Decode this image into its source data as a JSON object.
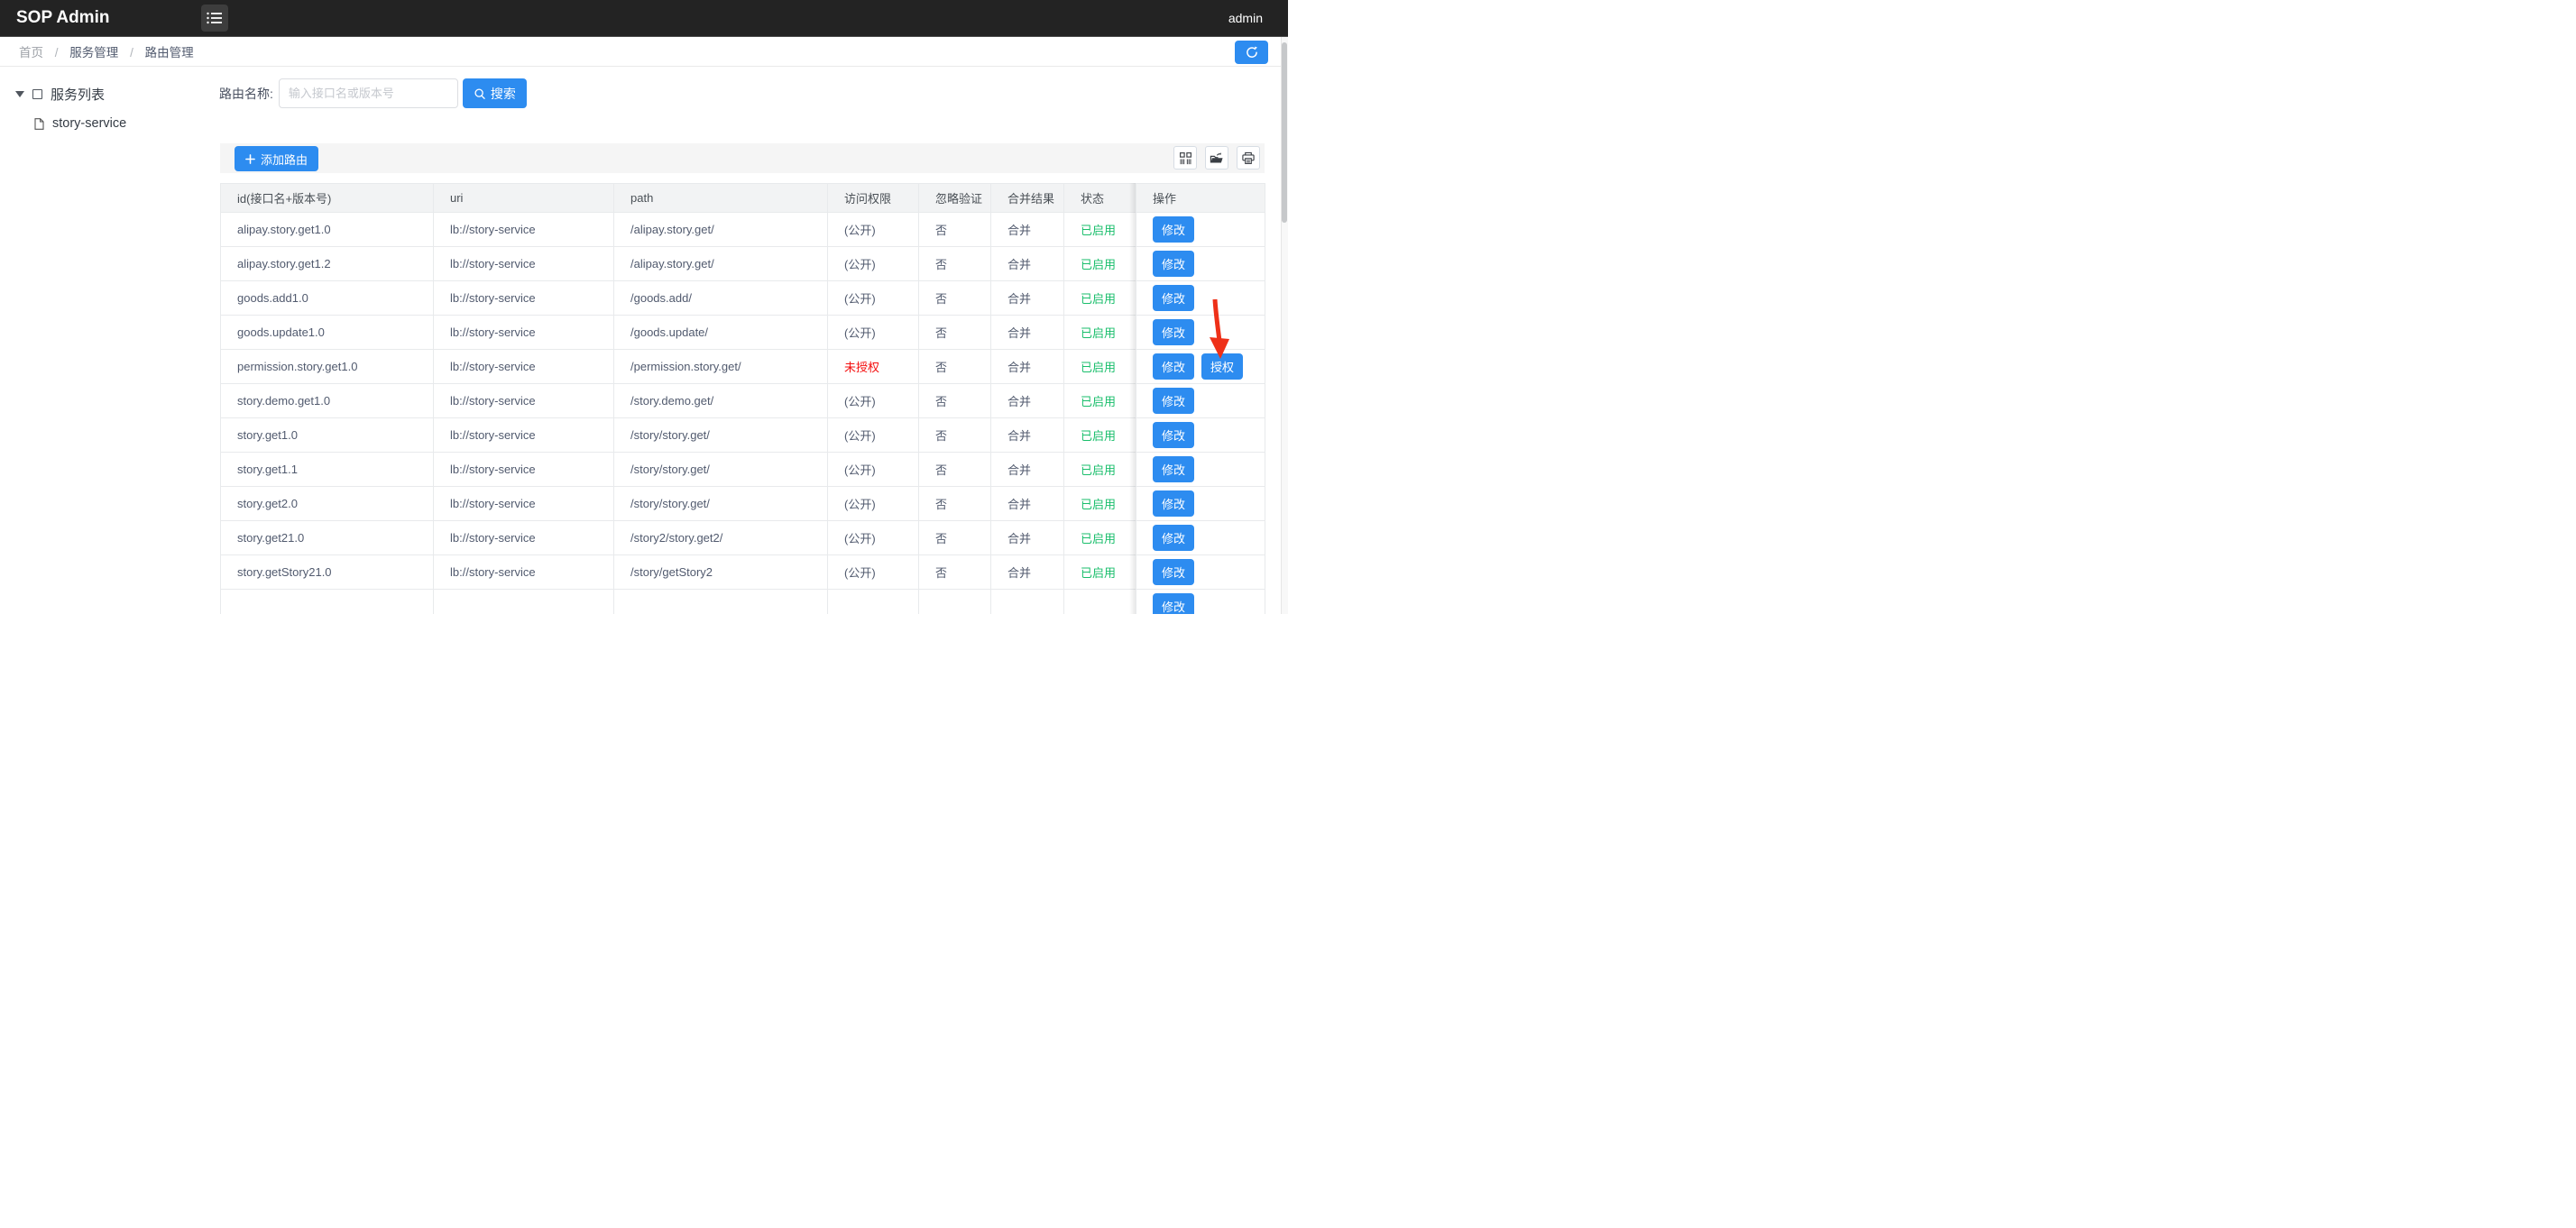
{
  "header": {
    "title": "SOP Admin",
    "user": "admin"
  },
  "breadcrumb": {
    "items": [
      "首页",
      "服务管理",
      "路由管理"
    ],
    "separator": "/"
  },
  "tree": {
    "root_label": "服务列表",
    "children": [
      "story-service"
    ]
  },
  "search": {
    "label": "路由名称:",
    "placeholder": "输入接口名或版本号",
    "value": "",
    "button_label": "搜索"
  },
  "toolbar": {
    "add_label": "添加路由"
  },
  "table": {
    "columns": [
      "id(接口名+版本号)",
      "uri",
      "path",
      "访问权限",
      "忽略验证",
      "合并结果",
      "状态",
      "操作"
    ],
    "rows": [
      {
        "id": "alipay.story.get1.0",
        "uri": "lb://story-service",
        "path": "/alipay.story.get/",
        "permission": "(公开)",
        "unauthorized": false,
        "ignore_auth": "否",
        "merge_result": "合并",
        "status": "已启用",
        "actions": [
          "修改"
        ]
      },
      {
        "id": "alipay.story.get1.2",
        "uri": "lb://story-service",
        "path": "/alipay.story.get/",
        "permission": "(公开)",
        "unauthorized": false,
        "ignore_auth": "否",
        "merge_result": "合并",
        "status": "已启用",
        "actions": [
          "修改"
        ]
      },
      {
        "id": "goods.add1.0",
        "uri": "lb://story-service",
        "path": "/goods.add/",
        "permission": "(公开)",
        "unauthorized": false,
        "ignore_auth": "否",
        "merge_result": "合并",
        "status": "已启用",
        "actions": [
          "修改"
        ]
      },
      {
        "id": "goods.update1.0",
        "uri": "lb://story-service",
        "path": "/goods.update/",
        "permission": "(公开)",
        "unauthorized": false,
        "ignore_auth": "否",
        "merge_result": "合并",
        "status": "已启用",
        "actions": [
          "修改"
        ]
      },
      {
        "id": "permission.story.get1.0",
        "uri": "lb://story-service",
        "path": "/permission.story.get/",
        "permission": "未授权",
        "unauthorized": true,
        "ignore_auth": "否",
        "merge_result": "合并",
        "status": "已启用",
        "actions": [
          "修改",
          "授权"
        ]
      },
      {
        "id": "story.demo.get1.0",
        "uri": "lb://story-service",
        "path": "/story.demo.get/",
        "permission": "(公开)",
        "unauthorized": false,
        "ignore_auth": "否",
        "merge_result": "合并",
        "status": "已启用",
        "actions": [
          "修改"
        ]
      },
      {
        "id": "story.get1.0",
        "uri": "lb://story-service",
        "path": "/story/story.get/",
        "permission": "(公开)",
        "unauthorized": false,
        "ignore_auth": "否",
        "merge_result": "合并",
        "status": "已启用",
        "actions": [
          "修改"
        ]
      },
      {
        "id": "story.get1.1",
        "uri": "lb://story-service",
        "path": "/story/story.get/",
        "permission": "(公开)",
        "unauthorized": false,
        "ignore_auth": "否",
        "merge_result": "合并",
        "status": "已启用",
        "actions": [
          "修改"
        ]
      },
      {
        "id": "story.get2.0",
        "uri": "lb://story-service",
        "path": "/story/story.get/",
        "permission": "(公开)",
        "unauthorized": false,
        "ignore_auth": "否",
        "merge_result": "合并",
        "status": "已启用",
        "actions": [
          "修改"
        ]
      },
      {
        "id": "story.get21.0",
        "uri": "lb://story-service",
        "path": "/story2/story.get2/",
        "permission": "(公开)",
        "unauthorized": false,
        "ignore_auth": "否",
        "merge_result": "合并",
        "status": "已启用",
        "actions": [
          "修改"
        ]
      },
      {
        "id": "story.getStory21.0",
        "uri": "lb://story-service",
        "path": "/story/getStory2",
        "permission": "(公开)",
        "unauthorized": false,
        "ignore_auth": "否",
        "merge_result": "合并",
        "status": "已启用",
        "actions": [
          "修改"
        ]
      },
      {
        "id": "",
        "uri": "",
        "path": "",
        "permission": "",
        "unauthorized": false,
        "ignore_auth": "",
        "merge_result": "",
        "status": "",
        "actions": [
          "修改"
        ],
        "partial": true
      }
    ]
  },
  "icons": {
    "header_menu": "list-menu-icon",
    "search": "search-icon",
    "add": "plus-icon",
    "toolbar": [
      "columns-icon",
      "export-icon",
      "printer-icon"
    ],
    "refresh": "refresh-icon",
    "tree_root_caret": "caret-down-icon",
    "tree_root": "square-outline-icon",
    "tree_child": "file-icon",
    "annotation": "red-arrow-down"
  },
  "colors": {
    "primary_blue": "#2d8cf0",
    "success_green": "#19be6b",
    "danger_red": "#f40f0f",
    "header_bg": "#232323",
    "toolbar_bg": "#f5f5f5",
    "table_header_bg": "#f2f3f4",
    "arrow_red": "#ee3018"
  }
}
